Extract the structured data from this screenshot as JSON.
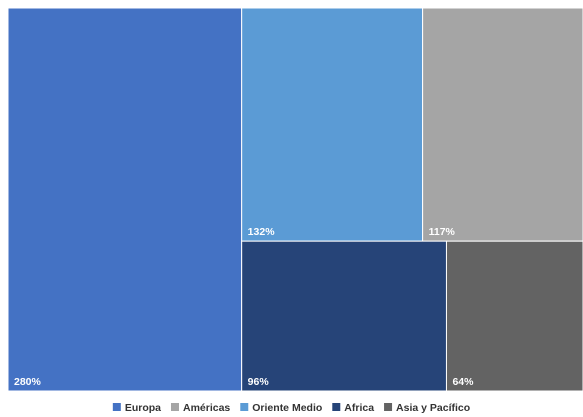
{
  "chart_data": {
    "type": "treemap",
    "title": "",
    "unit": "%",
    "items": [
      {
        "name": "Europa",
        "value": 280,
        "label": "280%",
        "color": "#4472C4"
      },
      {
        "name": "Oriente Medio",
        "value": 132,
        "label": "132%",
        "color": "#5B9BD5"
      },
      {
        "name": "Américas",
        "value": 117,
        "label": "117%",
        "color": "#A5A5A5"
      },
      {
        "name": "Africa",
        "value": 96,
        "label": "96%",
        "color": "#264478"
      },
      {
        "name": "Asia y Pacífico",
        "value": 64,
        "label": "64%",
        "color": "#636363"
      }
    ],
    "legend": {
      "placement": "bottom",
      "entries": [
        {
          "name": "Europa",
          "color": "#4472C4"
        },
        {
          "name": "Américas",
          "color": "#A5A5A5"
        },
        {
          "name": "Oriente Medio",
          "color": "#5B9BD5"
        },
        {
          "name": "Africa",
          "color": "#264478"
        },
        {
          "name": "Asia y Pacífico",
          "color": "#636363"
        }
      ]
    }
  }
}
